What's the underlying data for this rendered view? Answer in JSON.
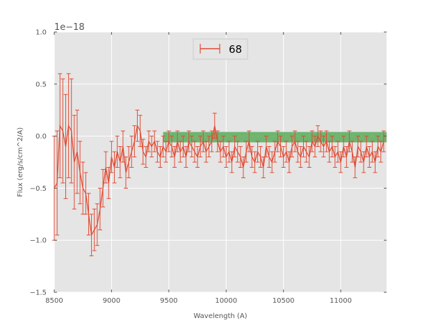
{
  "chart_data": {
    "type": "line",
    "xlabel": "Wavelength (A)",
    "ylabel": "Flux (erg/s/cm^2/A)",
    "xlim": [
      8500,
      11400
    ],
    "ylim": [
      -1.5,
      1.0
    ],
    "y_offset_label": "1e−18",
    "x_ticks": [
      8500,
      9000,
      9500,
      10000,
      10500,
      11000
    ],
    "x_tick_labels": [
      "8500",
      "9000",
      "9500",
      "10000",
      "10500",
      "11000"
    ],
    "y_ticks": [
      -1.5,
      -1.0,
      -0.5,
      0.0,
      0.5,
      1.0
    ],
    "y_tick_labels": [
      "−1.5",
      "−1.0",
      "−0.5",
      "0.0",
      "0.5",
      "1.0"
    ],
    "grid": true,
    "legend_position": "top-center",
    "colors": {
      "series": "#e24a33",
      "band": "#5aab5a",
      "background": "#e5e5e5",
      "grid": "#ffffff"
    },
    "band": {
      "x": [
        9450,
        11400
      ],
      "y": [
        -0.06,
        0.04
      ]
    },
    "series": [
      {
        "name": "68",
        "x": [
          8500,
          8525,
          8550,
          8575,
          8600,
          8625,
          8650,
          8675,
          8700,
          8725,
          8750,
          8775,
          8800,
          8825,
          8850,
          8875,
          8900,
          8925,
          8950,
          8975,
          9000,
          9025,
          9050,
          9075,
          9100,
          9125,
          9150,
          9175,
          9200,
          9225,
          9250,
          9275,
          9300,
          9325,
          9350,
          9375,
          9400,
          9425,
          9450,
          9475,
          9500,
          9525,
          9550,
          9575,
          9600,
          9625,
          9650,
          9675,
          9700,
          9725,
          9750,
          9775,
          9800,
          9825,
          9850,
          9875,
          9900,
          9925,
          9950,
          9975,
          10000,
          10025,
          10050,
          10075,
          10100,
          10125,
          10150,
          10175,
          10200,
          10225,
          10250,
          10275,
          10300,
          10325,
          10350,
          10375,
          10400,
          10425,
          10450,
          10475,
          10500,
          10525,
          10550,
          10575,
          10600,
          10625,
          10650,
          10675,
          10700,
          10725,
          10750,
          10775,
          10800,
          10825,
          10850,
          10875,
          10900,
          10925,
          10950,
          10975,
          11000,
          11025,
          11050,
          11075,
          11100,
          11125,
          11150,
          11175,
          11200,
          11225,
          11250,
          11275,
          11300,
          11325,
          11350,
          11375
        ],
        "y": [
          -0.5,
          -0.45,
          0.1,
          0.05,
          -0.1,
          0.1,
          0.05,
          -0.25,
          -0.15,
          -0.35,
          -0.5,
          -0.55,
          -0.75,
          -0.95,
          -0.9,
          -0.85,
          -0.7,
          -0.5,
          -0.3,
          -0.45,
          -0.2,
          -0.3,
          -0.15,
          -0.25,
          -0.1,
          -0.35,
          -0.25,
          -0.15,
          -0.05,
          0.1,
          0.05,
          -0.15,
          -0.2,
          -0.05,
          -0.1,
          -0.05,
          -0.15,
          -0.2,
          -0.1,
          -0.15,
          -0.05,
          -0.1,
          -0.2,
          -0.05,
          -0.15,
          -0.1,
          -0.2,
          -0.05,
          -0.1,
          -0.15,
          -0.2,
          -0.1,
          -0.05,
          -0.15,
          -0.1,
          -0.05,
          0.1,
          -0.05,
          -0.15,
          -0.1,
          -0.2,
          -0.15,
          -0.25,
          -0.1,
          -0.15,
          -0.2,
          -0.3,
          -0.15,
          -0.05,
          -0.2,
          -0.25,
          -0.15,
          -0.2,
          -0.3,
          -0.1,
          -0.2,
          -0.25,
          -0.15,
          -0.05,
          -0.1,
          -0.2,
          -0.15,
          -0.25,
          -0.1,
          -0.05,
          -0.15,
          -0.2,
          -0.1,
          -0.15,
          -0.2,
          -0.05,
          -0.1,
          0.0,
          -0.05,
          -0.1,
          -0.05,
          -0.15,
          -0.1,
          -0.2,
          -0.15,
          -0.25,
          -0.1,
          -0.2,
          -0.05,
          -0.15,
          -0.3,
          -0.1,
          -0.15,
          -0.25,
          -0.1,
          -0.2,
          -0.15,
          -0.25,
          -0.1,
          -0.15,
          -0.05
        ],
        "err": [
          0.5,
          0.5,
          0.5,
          0.5,
          0.5,
          0.5,
          0.5,
          0.45,
          0.4,
          0.3,
          0.25,
          0.2,
          0.2,
          0.2,
          0.2,
          0.2,
          0.2,
          0.18,
          0.15,
          0.15,
          0.15,
          0.15,
          0.15,
          0.15,
          0.15,
          0.15,
          0.15,
          0.15,
          0.15,
          0.15,
          0.15,
          0.12,
          0.1,
          0.1,
          0.1,
          0.1,
          0.1,
          0.1,
          0.1,
          0.1,
          0.1,
          0.1,
          0.1,
          0.1,
          0.1,
          0.1,
          0.1,
          0.1,
          0.1,
          0.1,
          0.1,
          0.1,
          0.1,
          0.1,
          0.1,
          0.1,
          0.12,
          0.1,
          0.1,
          0.1,
          0.1,
          0.1,
          0.1,
          0.1,
          0.1,
          0.1,
          0.1,
          0.1,
          0.1,
          0.1,
          0.1,
          0.1,
          0.1,
          0.1,
          0.1,
          0.1,
          0.1,
          0.1,
          0.1,
          0.1,
          0.1,
          0.1,
          0.1,
          0.1,
          0.1,
          0.1,
          0.1,
          0.1,
          0.1,
          0.1,
          0.1,
          0.1,
          0.1,
          0.1,
          0.1,
          0.1,
          0.1,
          0.1,
          0.1,
          0.1,
          0.1,
          0.1,
          0.1,
          0.1,
          0.1,
          0.1,
          0.1,
          0.1,
          0.1,
          0.1,
          0.1,
          0.1,
          0.1,
          0.1,
          0.1,
          0.1
        ]
      }
    ]
  }
}
